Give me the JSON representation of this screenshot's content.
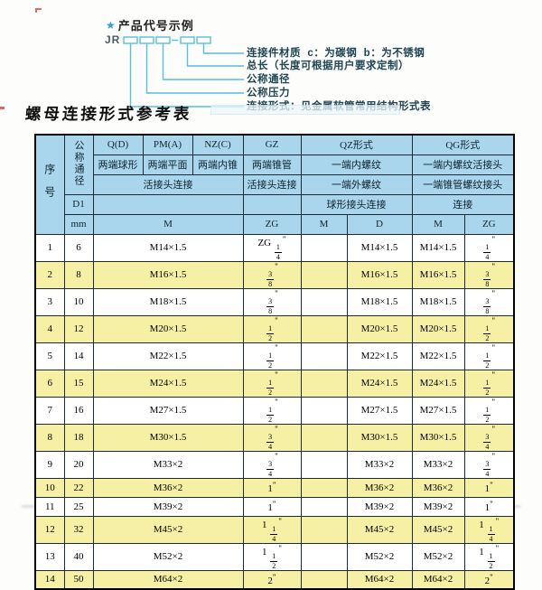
{
  "colors": {
    "header_bg": "#a9d6ec",
    "row_alt_bg": "#f5f0a3",
    "diagram_line": "#56bfd9",
    "star_accent": "#2a9fd0",
    "grid_line": "#1c2b36"
  },
  "diagram": {
    "star_icon": "★",
    "heading": "产品代号示例",
    "code_prefix": "JR",
    "labels": [
      "连接件材质  c：为碳钢  b：为不锈钢",
      "总长（长度可根据用户要求定制）",
      "公称通径",
      "公称压力",
      "连接形式：见金属软管常用结构形式表"
    ]
  },
  "table_title": "螺母连接形式参考表",
  "table": {
    "corner_label": "序号",
    "dn_label": "公称通径",
    "d1_label": "D1",
    "mm_label": "mm",
    "col_groups": {
      "qd": "Q(D)",
      "pma": "PM(A)",
      "nzc": "NZ(C)",
      "gz": "GZ",
      "qz": "QZ形式",
      "qg": "QG形式"
    },
    "row2": {
      "qd": "两端球形",
      "pma": "两端平面",
      "nzc": "两端内锥",
      "gz": "两端锥管",
      "qz": "一端内螺纹",
      "qg": "一端内螺纹活接头"
    },
    "row3": {
      "left": "活接头连接",
      "gz": "活接头连接",
      "qz": "一端外螺纹",
      "qg": "一端锥管螺纹接头"
    },
    "row4": {
      "qz": "球形接头连接",
      "qg": "连接"
    },
    "row5": {
      "m": "M",
      "zg": "ZG",
      "qz_m": "M",
      "qz_d": "D",
      "qg_m": "M",
      "qg_zg": "ZG"
    },
    "rows": [
      {
        "seq": "1",
        "dn": "6",
        "m": "M14×1.5",
        "zg": "ZG 1/4\"",
        "qz_m": "",
        "qz_d": "M14×1.5",
        "qg_m": "M14×1.5",
        "qg_zg": "1/4\""
      },
      {
        "seq": "2",
        "dn": "8",
        "m": "M16×1.5",
        "zg": "3/8\"",
        "qz_m": "",
        "qz_d": "M16×1.5",
        "qg_m": "M16×1.5",
        "qg_zg": "3/8\""
      },
      {
        "seq": "3",
        "dn": "10",
        "m": "M18×1.5",
        "zg": "3/8\"",
        "qz_m": "",
        "qz_d": "M18×1.5",
        "qg_m": "M18×1.5",
        "qg_zg": "3/8\""
      },
      {
        "seq": "4",
        "dn": "12",
        "m": "M20×1.5",
        "zg": "1/2\"",
        "qz_m": "",
        "qz_d": "M20×1.5",
        "qg_m": "M20×1.5",
        "qg_zg": "1/2\""
      },
      {
        "seq": "5",
        "dn": "14",
        "m": "M22×1.5",
        "zg": "1/2\"",
        "qz_m": "",
        "qz_d": "M22×1.5",
        "qg_m": "M22×1.5",
        "qg_zg": "1/2\""
      },
      {
        "seq": "6",
        "dn": "15",
        "m": "M24×1.5",
        "zg": "1/2\"",
        "qz_m": "",
        "qz_d": "M24×1.5",
        "qg_m": "M24×1.5",
        "qg_zg": "1/2\""
      },
      {
        "seq": "7",
        "dn": "16",
        "m": "M27×1.5",
        "zg": "1/2\"",
        "qz_m": "",
        "qz_d": "M27×1.5",
        "qg_m": "M27×1.5",
        "qg_zg": "1/2\""
      },
      {
        "seq": "8",
        "dn": "18",
        "m": "M30×1.5",
        "zg": "3/4\"",
        "qz_m": "",
        "qz_d": "M30×1.5",
        "qg_m": "M30×1.5",
        "qg_zg": "3/4\""
      },
      {
        "seq": "9",
        "dn": "20",
        "m": "M33×2",
        "zg": "3/4\"",
        "qz_m": "",
        "qz_d": "M33×2",
        "qg_m": "M33×2",
        "qg_zg": "3/4\""
      },
      {
        "seq": "10",
        "dn": "22",
        "m": "M36×2",
        "zg": "1\"",
        "qz_m": "",
        "qz_d": "M36×2",
        "qg_m": "M36×2",
        "qg_zg": "1\""
      },
      {
        "seq": "11",
        "dn": "25",
        "m": "M39×2",
        "zg": "1\"",
        "qz_m": "",
        "qz_d": "M39×2",
        "qg_m": "M39×2",
        "qg_zg": "1\""
      },
      {
        "seq": "12",
        "dn": "32",
        "m": "M45×2",
        "zg": "1 1/4\"",
        "qz_m": "",
        "qz_d": "M45×2",
        "qg_m": "M45×2",
        "qg_zg": "1 1/4\""
      },
      {
        "seq": "13",
        "dn": "40",
        "m": "M52×2",
        "zg": "1 1/2\"",
        "qz_m": "",
        "qz_d": "M52×2",
        "qg_m": "M52×2",
        "qg_zg": "1 1/2\""
      },
      {
        "seq": "14",
        "dn": "50",
        "m": "M64×2",
        "zg": "2\"",
        "qz_m": "",
        "qz_d": "M64×2",
        "qg_m": "M64×2",
        "qg_zg": "2\""
      }
    ]
  }
}
